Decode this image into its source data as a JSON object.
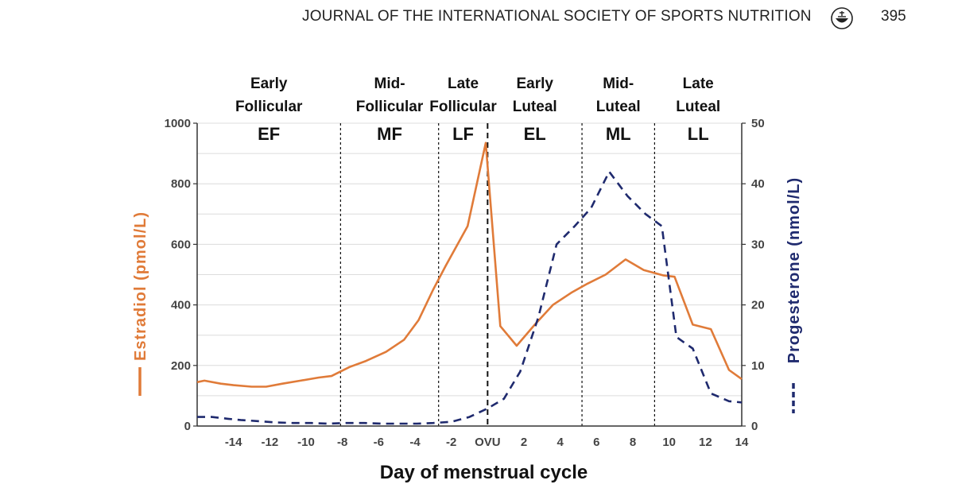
{
  "header": {
    "journal_title": "JOURNAL OF THE INTERNATIONAL SOCIETY OF SPORTS NUTRITION",
    "page_number": "395",
    "logo_icon": "journal-logo-icon"
  },
  "colors": {
    "estradiol": "#E07B39",
    "progesterone": "#1F2A6E",
    "grid": "#dcdcdc",
    "axis": "#333333"
  },
  "chart_data": {
    "type": "line",
    "title": "",
    "xlabel": "Day of menstrual cycle",
    "ylabel_left": "Estradiol (pmol/L)",
    "ylabel_right": "Progesterone (nmol/L)",
    "xlim": [
      -16,
      14
    ],
    "ylim_left": [
      0,
      1000
    ],
    "ylim_right": [
      0,
      50
    ],
    "grid": true,
    "x_ticks": [
      {
        "x": -14,
        "label": "-14"
      },
      {
        "x": -12,
        "label": "-12"
      },
      {
        "x": -10,
        "label": "-10"
      },
      {
        "x": -8,
        "label": "-8"
      },
      {
        "x": -6,
        "label": "-6"
      },
      {
        "x": -4,
        "label": "-4"
      },
      {
        "x": -2,
        "label": "-2"
      },
      {
        "x": 0,
        "label": "OVU"
      },
      {
        "x": 2,
        "label": "2"
      },
      {
        "x": 4,
        "label": "4"
      },
      {
        "x": 6,
        "label": "6"
      },
      {
        "x": 8,
        "label": "8"
      },
      {
        "x": 10,
        "label": "10"
      },
      {
        "x": 12,
        "label": "12"
      },
      {
        "x": 14,
        "label": "14"
      }
    ],
    "y_ticks_left": [
      0,
      200,
      400,
      600,
      800,
      1000
    ],
    "y_ticks_right": [
      0,
      10,
      20,
      30,
      40,
      50
    ],
    "phases": [
      {
        "abbr": "EF",
        "line1": "Early",
        "line2": "Follicular",
        "start": -16,
        "end": -8.1
      },
      {
        "abbr": "MF",
        "line1": "Mid-",
        "line2": "Follicular",
        "start": -8.1,
        "end": -2.7
      },
      {
        "abbr": "LF",
        "line1": "Late",
        "line2": "Follicular",
        "start": -2.7,
        "end": 0
      },
      {
        "abbr": "EL",
        "line1": "Early",
        "line2": "Luteal",
        "start": 0,
        "end": 5.2
      },
      {
        "abbr": "ML",
        "line1": "Mid-",
        "line2": "Luteal",
        "start": 5.2,
        "end": 9.2
      },
      {
        "abbr": "LL",
        "line1": "Late",
        "line2": "Luteal",
        "start": 9.2,
        "end": 14
      }
    ],
    "ovulation_x": 0,
    "series": [
      {
        "name": "Estradiol",
        "axis": "left",
        "style": "solid",
        "x": [
          -16,
          -15.6,
          -14.7,
          -14,
          -13,
          -12.2,
          -11.3,
          -10.3,
          -9.3,
          -8.6,
          -7.6,
          -6.7,
          -5.6,
          -4.6,
          -3.8,
          -3,
          -2.3,
          -1.1,
          -0.1,
          0.7,
          1.6,
          2.6,
          3.6,
          4.6,
          5.5,
          6.5,
          7.6,
          8.6,
          9.7,
          10.3,
          11.3,
          12.3,
          13.3,
          14
        ],
        "values": [
          145,
          150,
          140,
          135,
          130,
          130,
          140,
          150,
          160,
          165,
          195,
          215,
          245,
          285,
          350,
          450,
          530,
          660,
          935,
          330,
          265,
          335,
          400,
          440,
          470,
          500,
          550,
          515,
          497,
          493,
          335,
          320,
          185,
          155
        ]
      },
      {
        "name": "Progesterone",
        "axis": "right",
        "style": "dashed",
        "x": [
          -16,
          -15.2,
          -14.3,
          -13.6,
          -12.6,
          -11.7,
          -10.7,
          -9.7,
          -8.8,
          -7.8,
          -6.8,
          -5.8,
          -4.9,
          -3.9,
          -3,
          -2,
          -1,
          0,
          0.9,
          1.8,
          2.8,
          3.8,
          4.8,
          5.7,
          6.7,
          7.7,
          8.7,
          9.6,
          10.4,
          11.3,
          12.3,
          13.3,
          14
        ],
        "values": [
          1.5,
          1.5,
          1.2,
          1,
          0.8,
          0.6,
          0.5,
          0.5,
          0.4,
          0.5,
          0.5,
          0.4,
          0.4,
          0.4,
          0.5,
          0.7,
          1.5,
          2.9,
          4.5,
          9,
          18,
          30,
          33,
          36,
          42,
          38,
          35,
          33,
          14.7,
          12.8,
          5.4,
          4.1,
          3.9
        ]
      }
    ]
  }
}
